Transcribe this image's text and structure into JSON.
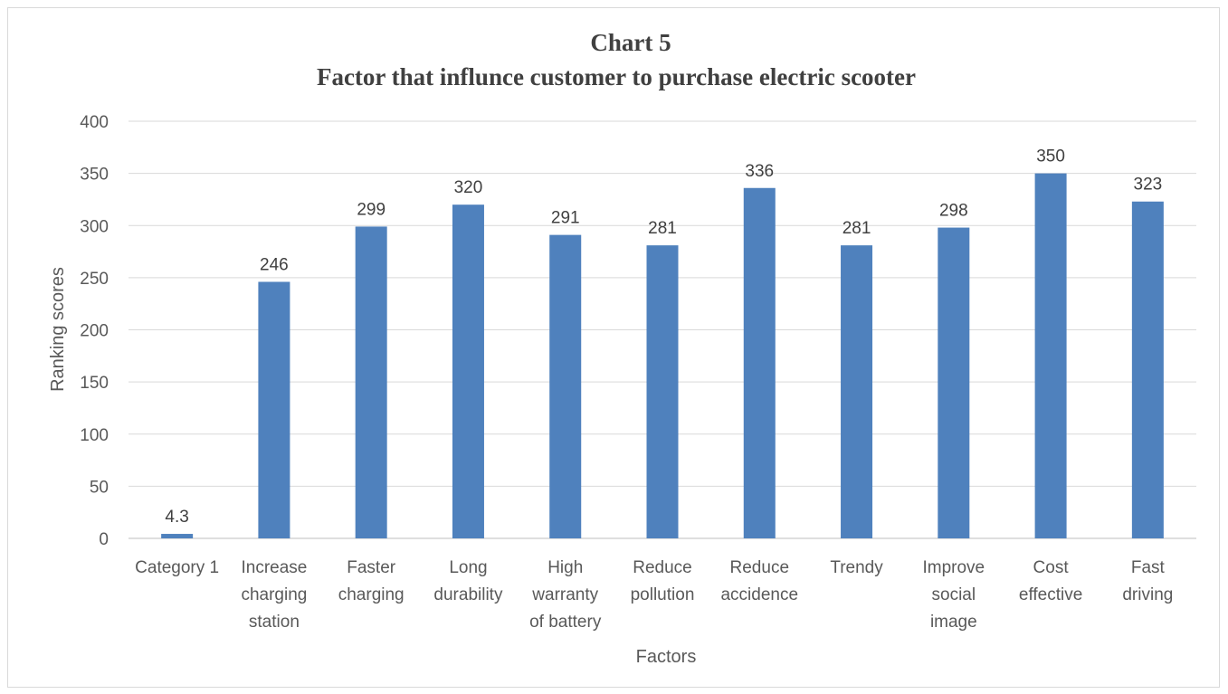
{
  "chart_data": {
    "type": "bar",
    "title_line1": "Chart 5",
    "title_line2": "Factor that influnce customer to purchase electric scooter",
    "xlabel": "Factors",
    "ylabel": "Ranking scores",
    "ylim": [
      0,
      400
    ],
    "yticks": [
      0,
      50,
      100,
      150,
      200,
      250,
      300,
      350,
      400
    ],
    "grid": true,
    "legend": "none",
    "bar_color": "#4f81bd",
    "categories": [
      [
        "Category 1"
      ],
      [
        "Increase",
        "charging",
        "station"
      ],
      [
        "Faster",
        "charging"
      ],
      [
        "Long",
        "durability"
      ],
      [
        "High",
        "warranty",
        "of battery"
      ],
      [
        "Reduce",
        "pollution"
      ],
      [
        "Reduce",
        "accidence"
      ],
      [
        "Trendy"
      ],
      [
        "Improve",
        "social",
        "image"
      ],
      [
        "Cost",
        "effective"
      ],
      [
        "Fast",
        "driving"
      ]
    ],
    "values": [
      4.3,
      246,
      299,
      320,
      291,
      281,
      336,
      281,
      298,
      350,
      323
    ],
    "data_labels": [
      "4.3",
      "246",
      "299",
      "320",
      "291",
      "281",
      "336",
      "281",
      "298",
      "350",
      "323"
    ]
  }
}
